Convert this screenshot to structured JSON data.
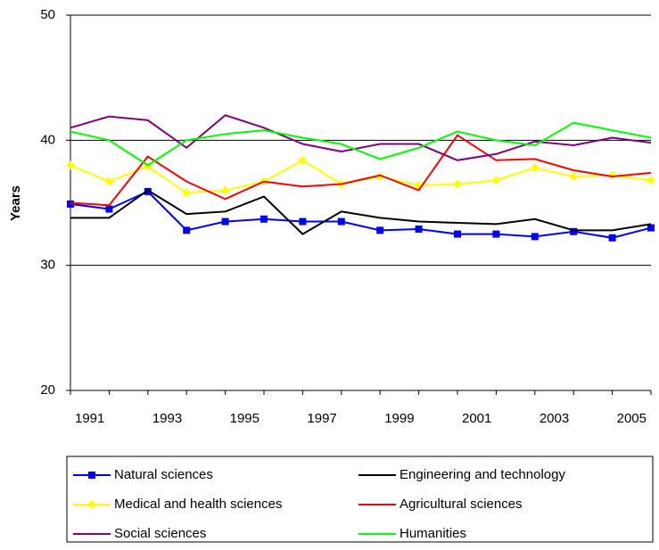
{
  "chart_data": {
    "type": "line",
    "y_label": "Years",
    "categories": [
      null,
      "1991",
      null,
      "1993",
      null,
      "1995",
      null,
      "1997",
      null,
      "1999",
      null,
      "2001",
      null,
      "2003",
      null,
      "2005"
    ],
    "ylim": [
      20,
      50
    ],
    "yticks": [
      20,
      30,
      40,
      50
    ],
    "grid": true,
    "legend": "bottom",
    "series": [
      {
        "name": "Natural sciences",
        "color": "#0000ff",
        "marker": "square",
        "values": [
          34.9,
          34.5,
          35.9,
          32.8,
          33.5,
          33.7,
          33.5,
          33.5,
          32.8,
          32.9,
          32.5,
          32.5,
          32.3,
          32.7,
          32.2,
          33.0
        ]
      },
      {
        "name": "Engineering and technology",
        "color": "#000000",
        "values": [
          33.8,
          33.8,
          36.0,
          34.1,
          34.3,
          35.5,
          32.5,
          34.3,
          33.8,
          33.5,
          33.4,
          33.3,
          33.7,
          32.8,
          32.8,
          33.3
        ]
      },
      {
        "name": "Medical and health sciences",
        "color": "#ffff00",
        "marker": "diamond",
        "values": [
          38.0,
          36.7,
          37.9,
          35.8,
          36.0,
          36.7,
          38.4,
          36.5,
          37.1,
          36.4,
          36.5,
          36.8,
          37.8,
          37.1,
          37.2,
          36.8
        ]
      },
      {
        "name": "Agricultural sciences",
        "color": "#ff0000",
        "values": [
          35.0,
          34.8,
          38.7,
          36.7,
          35.3,
          36.7,
          36.3,
          36.5,
          37.2,
          36.0,
          40.4,
          38.4,
          38.5,
          37.6,
          37.1,
          37.4
        ]
      },
      {
        "name": "Social sciences",
        "color": "#800080",
        "values": [
          41.0,
          41.9,
          41.6,
          39.4,
          42.0,
          41.0,
          39.7,
          39.1,
          39.7,
          39.7,
          38.4,
          38.9,
          39.9,
          39.6,
          40.2,
          39.8
        ]
      },
      {
        "name": "Humanities",
        "color": "#00ff00",
        "values": [
          40.7,
          40.0,
          38.0,
          40.0,
          40.5,
          40.8,
          40.2,
          39.7,
          38.5,
          39.4,
          40.7,
          40.0,
          39.6,
          41.4,
          40.8,
          40.2
        ]
      }
    ]
  }
}
